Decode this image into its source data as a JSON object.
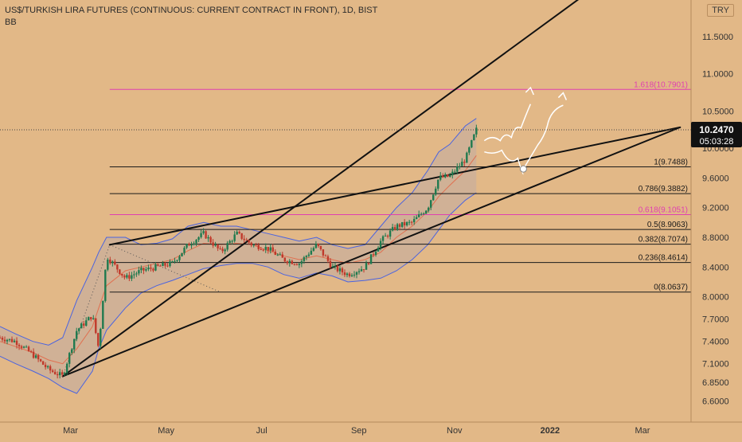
{
  "header": {
    "title": "US$/TURKISH LIRA FUTURES (CONTINUOUS: CURRENT CONTRACT IN FRONT), 1D, BIST",
    "indicator": "BB",
    "currency": "TRY"
  },
  "price_tag": {
    "price": "10.2470",
    "countdown": "05:03:28"
  },
  "colors": {
    "background": "#e2b887",
    "fib_black": "#1a1a1a",
    "fib_magenta": "#e040b0",
    "bb_band": "#4a63e0",
    "bb_basis": "#e07050",
    "bull": "#1f7a4f",
    "bear": "#c0392b"
  },
  "chart_data": {
    "type": "line",
    "title": "US$/TURKISH LIRA FUTURES (CONTINUOUS: CURRENT CONTRACT IN FRONT), 1D, BIST",
    "ylim": [
      6.4,
      11.95
    ],
    "y_ticks": [
      "11.5000",
      "11.0000",
      "10.5000",
      "10.0000",
      "9.6000",
      "9.2000",
      "8.8000",
      "8.4000",
      "8.0000",
      "7.7000",
      "7.4000",
      "7.1000",
      "6.8500",
      "6.6000"
    ],
    "x_ticks": [
      "Mar",
      "May",
      "Jul",
      "Sep",
      "Nov",
      "2022",
      "Mar"
    ],
    "fib_levels": [
      {
        "label": "1.618(10.7901)",
        "value": 10.7901,
        "color": "magenta"
      },
      {
        "label": "1(9.7488)",
        "value": 9.7488,
        "color": "black"
      },
      {
        "label": "0.786(9.3882)",
        "value": 9.3882,
        "color": "black"
      },
      {
        "label": "0.618(9.1051)",
        "value": 9.1051,
        "color": "magenta"
      },
      {
        "label": "0.5(8.9063)",
        "value": 8.9063,
        "color": "black"
      },
      {
        "label": "0.382(8.7074)",
        "value": 8.7074,
        "color": "black"
      },
      {
        "label": "0.236(8.4614)",
        "value": 8.4614,
        "color": "black"
      },
      {
        "label": "0(8.0637)",
        "value": 8.0637,
        "color": "black"
      }
    ],
    "last_price": 10.247,
    "price_series": {
      "name": "USD/TRY futures",
      "x": [
        "2021-01-15",
        "2021-01-25",
        "2021-02-05",
        "2021-02-15",
        "2021-02-24",
        "2021-03-05",
        "2021-03-15",
        "2021-03-19",
        "2021-03-24",
        "2021-04-05",
        "2021-04-15",
        "2021-04-25",
        "2021-05-05",
        "2021-05-15",
        "2021-05-25",
        "2021-06-05",
        "2021-06-15",
        "2021-06-25",
        "2021-07-05",
        "2021-07-15",
        "2021-07-25",
        "2021-08-05",
        "2021-08-15",
        "2021-08-25",
        "2021-09-05",
        "2021-09-15",
        "2021-09-25",
        "2021-10-05",
        "2021-10-15",
        "2021-10-22",
        "2021-10-29",
        "2021-11-08",
        "2021-11-15"
      ],
      "y": [
        7.45,
        7.4,
        7.22,
        7.02,
        6.93,
        7.55,
        7.75,
        7.3,
        8.55,
        8.25,
        8.35,
        8.4,
        8.45,
        8.7,
        8.85,
        8.6,
        8.85,
        8.7,
        8.65,
        8.5,
        8.45,
        8.7,
        8.4,
        8.3,
        8.4,
        8.75,
        8.95,
        9.0,
        9.2,
        9.6,
        9.62,
        9.85,
        10.247
      ]
    },
    "bollinger": {
      "upper": [
        7.6,
        7.5,
        7.4,
        7.35,
        7.45,
        7.95,
        8.4,
        8.6,
        8.8,
        8.8,
        8.7,
        8.72,
        8.78,
        8.95,
        9.0,
        8.95,
        8.95,
        8.9,
        8.85,
        8.8,
        8.75,
        8.8,
        8.7,
        8.65,
        8.7,
        8.95,
        9.2,
        9.4,
        9.7,
        9.95,
        10.05,
        10.3,
        10.4
      ],
      "basis": [
        7.4,
        7.33,
        7.25,
        7.15,
        7.1,
        7.3,
        7.6,
        7.85,
        8.15,
        8.35,
        8.4,
        8.45,
        8.5,
        8.62,
        8.72,
        8.7,
        8.72,
        8.7,
        8.62,
        8.55,
        8.5,
        8.55,
        8.5,
        8.45,
        8.5,
        8.6,
        8.8,
        8.95,
        9.15,
        9.35,
        9.5,
        9.7,
        9.9
      ],
      "lower": [
        7.2,
        7.1,
        7.0,
        6.9,
        6.78,
        6.7,
        7.0,
        7.3,
        7.55,
        7.85,
        8.05,
        8.15,
        8.22,
        8.3,
        8.38,
        8.42,
        8.45,
        8.45,
        8.4,
        8.3,
        8.25,
        8.32,
        8.28,
        8.2,
        8.22,
        8.25,
        8.35,
        8.5,
        8.7,
        8.9,
        9.1,
        9.3,
        9.4
      ]
    },
    "trendlines": [
      {
        "name": "rising-support",
        "from": {
          "x": "2021-02-24",
          "y": 6.93
        },
        "to": {
          "x": "2022-02-01",
          "y": 12.2
        }
      },
      {
        "name": "upper-channel",
        "from": {
          "x": "2021-03-26",
          "y": 8.7
        },
        "to": {
          "x": "2022-03-25",
          "y": 10.28
        }
      },
      {
        "name": "lower-channel",
        "from": {
          "x": "2021-02-24",
          "y": 6.93
        },
        "to": {
          "x": "2022-03-25",
          "y": 10.28
        }
      }
    ],
    "grid": false,
    "legend": "none"
  }
}
